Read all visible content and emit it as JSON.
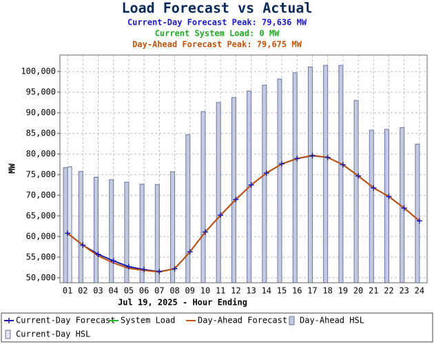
{
  "chart_data": {
    "type": "bar-line",
    "title": "Load Forecast vs Actual",
    "subtitles": [
      {
        "text": "Current-Day Forecast Peak:  79,636 MW",
        "color": "#1a1acc"
      },
      {
        "text": "Current System Load:  0 MW",
        "color": "#22aa22"
      },
      {
        "text": "Day-Ahead Forecast Peak:  79,675 MW",
        "color": "#c0540c"
      }
    ],
    "x_label": "Jul 19, 2025 - Hour Ending",
    "y_label": "MW",
    "categories": [
      "01",
      "02",
      "03",
      "04",
      "05",
      "06",
      "07",
      "08",
      "09",
      "10",
      "11",
      "12",
      "13",
      "14",
      "15",
      "16",
      "17",
      "18",
      "19",
      "20",
      "21",
      "22",
      "23",
      "24"
    ],
    "ylim": [
      48800,
      104000
    ],
    "yticks": [
      {
        "value": 50000,
        "label": "50,000"
      },
      {
        "value": 55000,
        "label": "55,000"
      },
      {
        "value": 60000,
        "label": "60,000"
      },
      {
        "value": 65000,
        "label": "65,000"
      },
      {
        "value": 70000,
        "label": "70,000"
      },
      {
        "value": 75000,
        "label": "75,000"
      },
      {
        "value": 80000,
        "label": "80,000"
      },
      {
        "value": 85000,
        "label": "85,000"
      },
      {
        "value": 90000,
        "label": "90,000"
      },
      {
        "value": 95000,
        "label": "95,000"
      },
      {
        "value": 100000,
        "label": "100,000"
      }
    ],
    "grid": true,
    "series": [
      {
        "name": "Current-Day Forecast",
        "kind": "line",
        "marker": "plus",
        "color": "#1a1aaa",
        "values": [
          60800,
          57900,
          55700,
          54100,
          52700,
          52000,
          51500,
          52200,
          56300,
          61100,
          65200,
          69000,
          72500,
          75400,
          77600,
          78900,
          79600,
          79200,
          77400,
          74700,
          71800,
          69700,
          66900,
          63800
        ]
      },
      {
        "name": "System Load",
        "kind": "line",
        "color": "#22bb22",
        "values": [
          null,
          null,
          null,
          null,
          null,
          null,
          null,
          null,
          null,
          null,
          null,
          null,
          null,
          null,
          null,
          null,
          null,
          null,
          null,
          null,
          null,
          null,
          null,
          null
        ]
      },
      {
        "name": "Day-Ahead Forecast",
        "kind": "line",
        "color": "#c0540c",
        "values": [
          60800,
          57900,
          55300,
          53600,
          52300,
          51800,
          51400,
          52200,
          56300,
          61100,
          65200,
          69000,
          72500,
          75400,
          77600,
          78900,
          79700,
          79200,
          77400,
          74700,
          71800,
          69700,
          66900,
          63800
        ]
      },
      {
        "name": "Day-Ahead HSL",
        "kind": "bar",
        "color": "#c3cade",
        "values": [
          76700,
          75800,
          74400,
          73800,
          73200,
          72700,
          72600,
          75700,
          84700,
          90300,
          92500,
          93700,
          95300,
          96700,
          98200,
          99700,
          101100,
          101500,
          101500,
          93000,
          85800,
          86000,
          86400,
          82400
        ]
      },
      {
        "name": "Current-Day HSL",
        "kind": "bar",
        "color": "#e2e5ef",
        "values": [
          76900,
          null,
          null,
          null,
          null,
          null,
          null,
          null,
          null,
          null,
          null,
          null,
          null,
          null,
          null,
          null,
          null,
          null,
          null,
          null,
          null,
          null,
          null,
          null
        ]
      }
    ]
  }
}
